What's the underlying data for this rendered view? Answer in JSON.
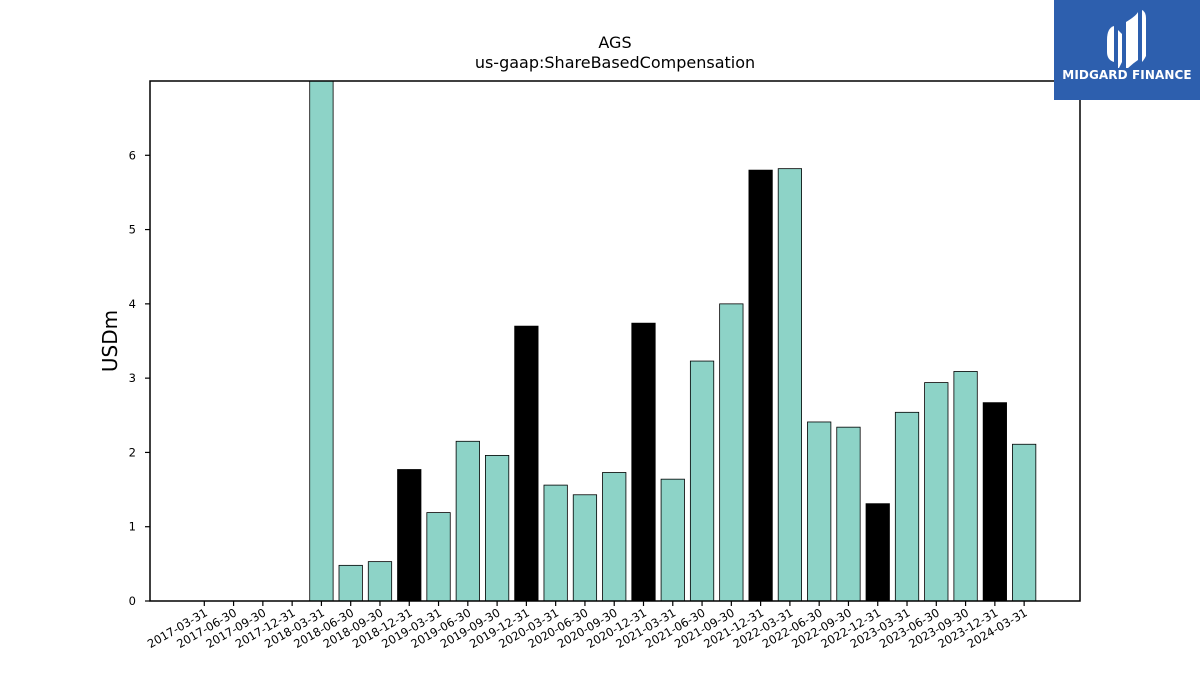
{
  "chart_data": {
    "type": "bar",
    "title": "AGS",
    "subtitle": "us-gaap:ShareBasedCompensation",
    "ylabel": "USDm",
    "xlabel": "",
    "ylim": [
      0,
      7.0
    ],
    "yticks": [
      0,
      1,
      2,
      3,
      4,
      5,
      6
    ],
    "grid": false,
    "categories": [
      "2017-03-31",
      "2017-06-30",
      "2017-09-30",
      "2017-12-31",
      "2018-03-31",
      "2018-06-30",
      "2018-09-30",
      "2018-12-31",
      "2019-03-31",
      "2019-06-30",
      "2019-09-30",
      "2019-12-31",
      "2020-03-31",
      "2020-06-30",
      "2020-09-30",
      "2020-12-31",
      "2021-03-31",
      "2021-06-30",
      "2021-09-30",
      "2021-12-31",
      "2022-03-31",
      "2022-06-30",
      "2022-09-30",
      "2022-12-31",
      "2023-03-31",
      "2023-06-30",
      "2023-09-30",
      "2023-12-31",
      "2024-03-31"
    ],
    "values": [
      null,
      null,
      null,
      null,
      7.0,
      0.48,
      0.53,
      1.77,
      1.19,
      2.15,
      1.96,
      3.7,
      1.56,
      1.43,
      1.73,
      3.74,
      1.64,
      3.23,
      4.0,
      5.8,
      5.82,
      2.41,
      2.34,
      1.31,
      2.54,
      2.94,
      3.09,
      2.67,
      2.11
    ],
    "colors": {
      "quarter_bar": "#8dd3c7",
      "year_end_bar": "#000000",
      "bar_edge": "#000000"
    },
    "year_end_categories": [
      "2018-12-31",
      "2019-12-31",
      "2020-12-31",
      "2021-12-31",
      "2022-12-31",
      "2023-12-31"
    ]
  },
  "logo": {
    "text": "MIDGARD FINANCE",
    "background": "#2d5fae",
    "icon": "midgard-logo-icon"
  }
}
